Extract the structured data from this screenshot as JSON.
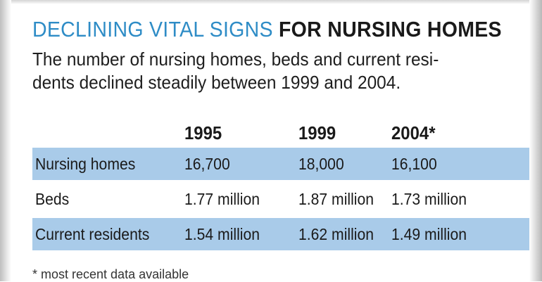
{
  "chart_data": {
    "type": "table",
    "title_accent": "DECLINING VITAL SIGNS",
    "title_main": "FOR NURSING HOMES",
    "subtitle_line1": "The number of nursing homes, beds and current resi-",
    "subtitle_line2": "dents declined steadily between 1999 and 2004.",
    "columns": [
      "1995",
      "1999",
      "2004*"
    ],
    "rows": [
      {
        "label": "Nursing homes",
        "values": [
          "16,700",
          "18,000",
          "16,100"
        ],
        "shaded": true
      },
      {
        "label": "Beds",
        "values": [
          "1.77 million",
          "1.87 million",
          "1.73 million"
        ],
        "shaded": false
      },
      {
        "label": "Current residents",
        "values": [
          "1.54 million",
          "1.62 million",
          "1.49 million"
        ],
        "shaded": true
      }
    ],
    "footnote": "* most recent data available",
    "colors": {
      "accent": "#2e8cc6",
      "row_shade": "#a9cbe9"
    }
  }
}
